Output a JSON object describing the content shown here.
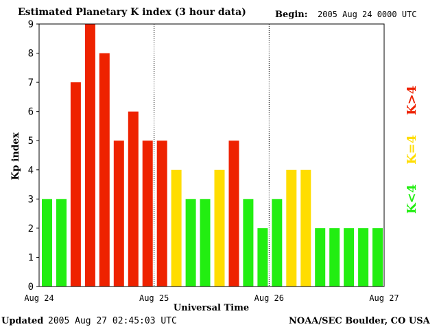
{
  "header": {
    "title": "Estimated Planetary K index (3 hour data)",
    "begin_label": "Begin:",
    "begin_value": "2005 Aug 24 0000 UTC"
  },
  "footer": {
    "updated_label": "Updated",
    "updated_value": "2005 Aug 27 02:45:03 UTC",
    "source": "NOAA/SEC Boulder, CO USA"
  },
  "legend": {
    "green_label": "K<4",
    "yellow_label": "K=4",
    "red_label": "K>4"
  },
  "colors": {
    "green": "#22ee11",
    "yellow": "#ffdd00",
    "red": "#ee2200"
  },
  "chart_data": {
    "type": "bar",
    "title": "Estimated Planetary K index (3 hour data)",
    "xlabel": "Universal Time",
    "ylabel": "Kp index",
    "ylim": [
      0,
      9
    ],
    "yticks": [
      0,
      1,
      2,
      3,
      4,
      5,
      6,
      7,
      8,
      9
    ],
    "day_labels": [
      "Aug 24",
      "Aug 25",
      "Aug 26",
      "Aug 27"
    ],
    "bars_per_day": 8,
    "values": [
      3,
      3,
      7,
      9,
      8,
      5,
      6,
      5,
      5,
      4,
      3,
      3,
      4,
      5,
      3,
      2,
      3,
      4,
      4,
      2,
      2,
      2,
      2,
      2
    ]
  }
}
